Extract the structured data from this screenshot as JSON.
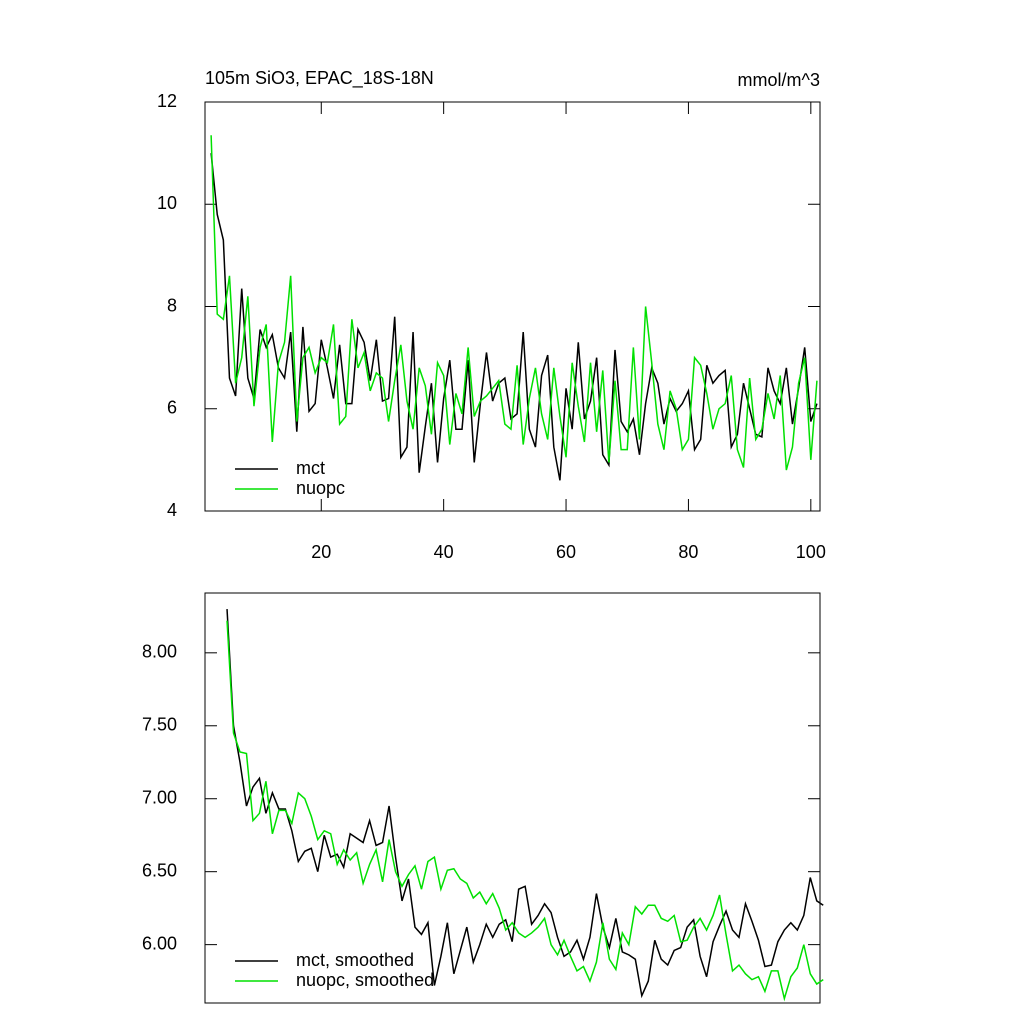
{
  "chart_data": [
    {
      "type": "line",
      "title": "105m SiO3, EPAC_18S-18N",
      "units": "mmol/m^3",
      "x": [
        2,
        3,
        4,
        5,
        6,
        7,
        8,
        9,
        10,
        11,
        12,
        13,
        14,
        15,
        16,
        17,
        18,
        19,
        20,
        21,
        22,
        23,
        24,
        25,
        26,
        27,
        28,
        29,
        30,
        31,
        32,
        33,
        34,
        35,
        36,
        37,
        38,
        39,
        40,
        41,
        42,
        43,
        44,
        45,
        46,
        47,
        48,
        49,
        50,
        51,
        52,
        53,
        54,
        55,
        56,
        57,
        58,
        59,
        60,
        61,
        62,
        63,
        64,
        65,
        66,
        67,
        68,
        69,
        70,
        71,
        72,
        73,
        74,
        75,
        76,
        77,
        78,
        79,
        80,
        81,
        82,
        83,
        84,
        85,
        86,
        87,
        88,
        89,
        90,
        91,
        92,
        93,
        94,
        95,
        96,
        97,
        98,
        99,
        100,
        101
      ],
      "xlim": [
        1,
        101.5
      ],
      "ylim": [
        4,
        12
      ],
      "xticks": [
        20,
        40,
        60,
        80,
        100
      ],
      "yticks": [
        4,
        6,
        8,
        10,
        12
      ],
      "legend": "lower left",
      "series": [
        {
          "name": "mct",
          "color": "#000000",
          "values": [
            11.0,
            9.8,
            9.3,
            6.6,
            6.25,
            8.35,
            6.6,
            6.2,
            7.55,
            7.2,
            7.45,
            6.8,
            6.6,
            7.5,
            5.55,
            7.6,
            5.95,
            6.1,
            7.35,
            6.8,
            6.2,
            7.25,
            6.1,
            6.1,
            7.55,
            7.3,
            6.55,
            7.35,
            6.15,
            6.2,
            7.8,
            5.05,
            5.25,
            7.5,
            4.75,
            5.65,
            6.5,
            4.95,
            6.2,
            6.95,
            5.6,
            5.6,
            6.95,
            4.95,
            6.1,
            7.1,
            6.15,
            6.5,
            6.6,
            5.8,
            5.9,
            7.5,
            5.6,
            5.25,
            6.65,
            7.05,
            5.25,
            4.6,
            6.4,
            5.6,
            7.3,
            5.8,
            6.15,
            7.0,
            5.1,
            4.9,
            7.15,
            5.75,
            5.55,
            5.8,
            5.1,
            6.1,
            6.8,
            6.5,
            5.7,
            6.2,
            5.95,
            6.1,
            6.35,
            5.2,
            5.4,
            6.85,
            6.5,
            6.65,
            6.75,
            5.25,
            5.5,
            6.5,
            6.0,
            5.5,
            5.45,
            6.8,
            6.35,
            6.1,
            6.8,
            5.7,
            6.4,
            7.2,
            5.75,
            6.1
          ]
        },
        {
          "name": "nuopc",
          "color": "#00e000",
          "values": [
            11.35,
            7.85,
            7.75,
            8.6,
            6.5,
            7.0,
            8.2,
            6.05,
            7.2,
            7.65,
            5.35,
            6.9,
            7.3,
            8.6,
            5.75,
            7.0,
            7.2,
            6.7,
            7.0,
            6.9,
            7.65,
            5.7,
            5.85,
            7.75,
            6.8,
            7.1,
            6.35,
            6.7,
            6.6,
            5.75,
            6.55,
            7.25,
            6.15,
            5.6,
            6.8,
            6.45,
            5.5,
            6.9,
            6.65,
            5.3,
            6.3,
            5.9,
            7.2,
            5.85,
            6.15,
            6.25,
            6.4,
            6.55,
            5.7,
            5.6,
            6.85,
            5.3,
            6.2,
            6.8,
            5.9,
            5.4,
            6.8,
            5.85,
            5.05,
            6.9,
            6.05,
            5.35,
            6.9,
            5.55,
            6.75,
            4.95,
            6.55,
            5.2,
            5.2,
            7.2,
            5.4,
            8.0,
            6.9,
            5.7,
            5.2,
            6.35,
            6.0,
            5.2,
            5.4,
            7.0,
            6.85,
            6.3,
            5.6,
            6.0,
            6.1,
            6.65,
            5.2,
            4.85,
            6.6,
            5.4,
            5.6,
            6.3,
            5.8,
            6.65,
            4.8,
            5.25,
            6.5,
            7.0,
            5.0,
            6.55
          ]
        }
      ]
    },
    {
      "type": "line",
      "x": [
        5,
        6,
        7,
        8,
        9,
        10,
        11,
        12,
        13,
        14,
        15,
        16,
        17,
        18,
        19,
        20,
        21,
        22,
        23,
        24,
        25,
        26,
        27,
        28,
        29,
        30,
        31,
        32,
        33,
        34,
        35,
        36,
        37,
        38,
        39,
        40,
        41,
        42,
        43,
        44,
        45,
        46,
        47,
        48,
        49,
        50,
        51,
        52,
        53,
        54,
        55,
        56,
        57,
        58,
        59,
        60,
        61,
        62,
        63,
        64,
        65,
        66,
        67,
        68,
        69,
        70,
        71,
        72,
        73,
        74,
        75,
        76,
        77,
        78,
        79,
        80,
        81,
        82,
        83,
        84,
        85,
        86,
        87,
        88,
        89,
        90,
        91,
        92,
        93,
        94,
        95,
        96,
        97
      ],
      "xlim": [
        1.6,
        96.5
      ],
      "ylim": [
        5.6,
        8.41
      ],
      "yticks": [
        {
          "value": 6,
          "label": "6.00"
        },
        {
          "value": 6.5,
          "label": "6.50"
        },
        {
          "value": 7,
          "label": "7.00"
        },
        {
          "value": 7.5,
          "label": "7.50"
        },
        {
          "value": 8,
          "label": "8.00"
        }
      ],
      "legend": "lower left",
      "series": [
        {
          "name": "mct, smoothed",
          "color": "#000000",
          "values": [
            8.3,
            7.5,
            7.25,
            6.95,
            7.08,
            7.14,
            6.9,
            7.04,
            6.93,
            6.93,
            6.78,
            6.57,
            6.64,
            6.66,
            6.5,
            6.75,
            6.6,
            6.62,
            6.53,
            6.76,
            6.73,
            6.7,
            6.85,
            6.68,
            6.7,
            6.95,
            6.6,
            6.3,
            6.45,
            6.12,
            6.07,
            6.15,
            5.72,
            5.92,
            6.15,
            5.8,
            5.96,
            6.12,
            5.88,
            6.0,
            6.14,
            6.05,
            6.14,
            6.17,
            6.02,
            6.38,
            6.4,
            6.14,
            6.2,
            6.28,
            6.22,
            6.05,
            5.92,
            5.95,
            6.03,
            5.9,
            6.05,
            6.35,
            6.12,
            5.98,
            6.18,
            5.95,
            5.93,
            5.9,
            5.65,
            5.75,
            6.03,
            5.9,
            5.86,
            5.96,
            5.98,
            6.12,
            6.17,
            5.92,
            5.78,
            6.02,
            6.13,
            6.23,
            6.1,
            6.05,
            6.28,
            6.16,
            6.03,
            5.85,
            5.86,
            6.02,
            6.1,
            6.15,
            6.1,
            6.2,
            6.46,
            6.3,
            6.27
          ]
        },
        {
          "name": "nuopc, smoothed",
          "color": "#00e000",
          "values": [
            8.22,
            7.45,
            7.32,
            7.31,
            6.85,
            6.9,
            7.12,
            6.76,
            6.92,
            6.92,
            6.83,
            7.04,
            7.0,
            6.88,
            6.72,
            6.78,
            6.76,
            6.55,
            6.65,
            6.58,
            6.63,
            6.42,
            6.55,
            6.65,
            6.43,
            6.72,
            6.5,
            6.4,
            6.48,
            6.54,
            6.38,
            6.57,
            6.6,
            6.38,
            6.51,
            6.52,
            6.45,
            6.42,
            6.32,
            6.36,
            6.28,
            6.35,
            6.25,
            6.1,
            6.15,
            6.08,
            6.05,
            6.08,
            6.12,
            6.18,
            6.0,
            5.93,
            6.03,
            5.92,
            5.82,
            5.85,
            5.75,
            5.88,
            6.15,
            5.9,
            5.83,
            6.08,
            6.0,
            6.26,
            6.21,
            6.27,
            6.27,
            6.18,
            6.16,
            6.2,
            6.02,
            6.03,
            6.12,
            6.18,
            6.1,
            6.2,
            6.34,
            6.07,
            5.82,
            5.86,
            5.8,
            5.76,
            5.78,
            5.68,
            5.82,
            5.82,
            5.63,
            5.78,
            5.84,
            6.0,
            5.8,
            5.73,
            5.76
          ]
        }
      ]
    }
  ]
}
